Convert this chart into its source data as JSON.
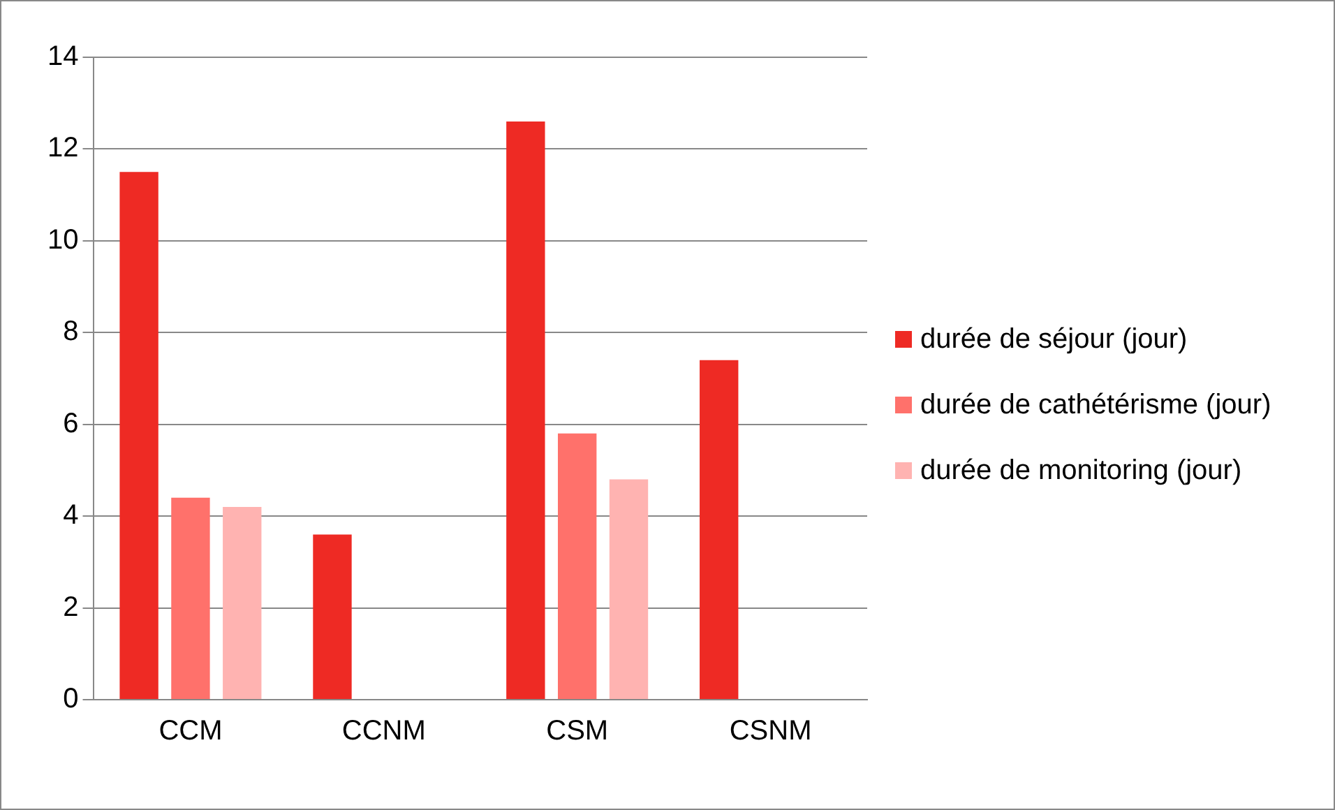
{
  "chart_data": {
    "type": "bar",
    "categories": [
      "CCM",
      "CCNM",
      "CSM",
      "CSNM"
    ],
    "series": [
      {
        "name": "durée de séjour (jour)",
        "color": "#ee2a24",
        "values": [
          11.5,
          3.6,
          12.6,
          7.4
        ]
      },
      {
        "name": "durée de cathétérisme (jour)",
        "color": "#ff716b",
        "values": [
          4.4,
          null,
          5.8,
          null
        ]
      },
      {
        "name": "durée de monitoring (jour)",
        "color": "#ffb3b1",
        "values": [
          4.2,
          null,
          4.8,
          null
        ]
      }
    ],
    "ylim": [
      0,
      14
    ],
    "yticks": [
      0,
      2,
      4,
      6,
      8,
      10,
      12,
      14
    ],
    "grid": "y",
    "legend": "right"
  }
}
